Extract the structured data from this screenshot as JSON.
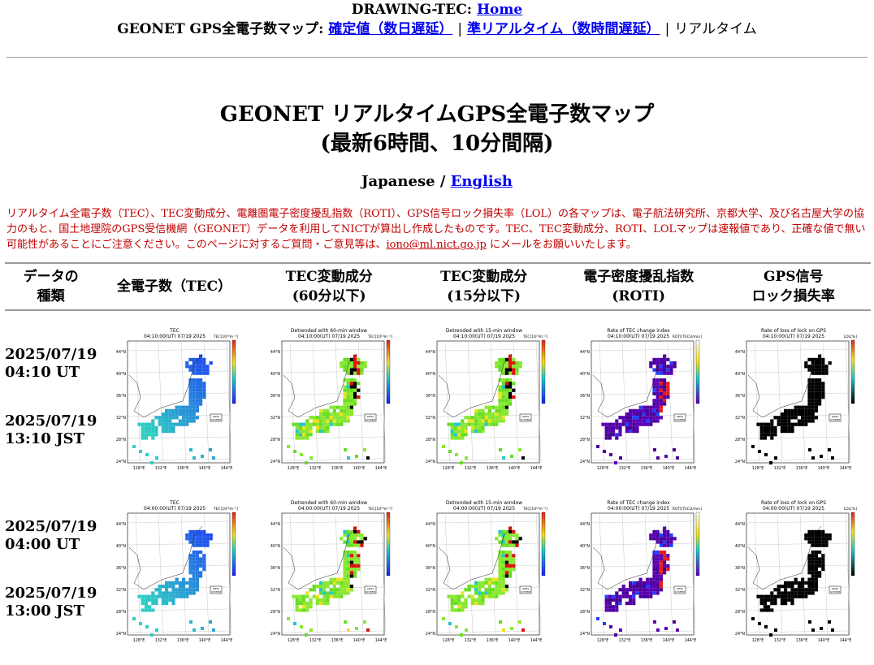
{
  "header": {
    "site_prefix": "DRAWING-TEC:",
    "home_link": "Home",
    "map_prefix": "GEONET GPS全電子数マップ:",
    "link_confirmed": "確定値（数日遅延）",
    "link_near_realtime": "準リアルタイム（数時間遅延）",
    "current": "リアルタイム"
  },
  "title": {
    "line1": "GEONET リアルタイムGPS全電子数マップ",
    "line2": "(最新6時間、10分間隔)"
  },
  "language": {
    "japanese": "Japanese /",
    "english": "English"
  },
  "notice": {
    "text": "リアルタイム全電子数（TEC）、TEC変動成分、電離圏電子密度擾乱指数（ROTI）、GPS信号ロック損失率（LOL）の各マップは、電子航法研究所、京都大学、及び名古屋大学の協力のもと、国土地理院のGPS受信機網（GEONET）データを利用してNICTが算出し作成したものです。TEC、TEC変動成分、ROTI、LOLマップは速報値であり、正確な値で無い可能性があることにご注意ください。このページに対するご質問・ご意見等は、",
    "email": "iono@ml.nict.go.jp",
    "suffix": " にメールをお願いいたします。"
  },
  "table": {
    "headers": {
      "type_line1": "データの",
      "type_line2": "種類",
      "tec": "全電子数（TEC）",
      "dtec60_line1": "TEC変動成分",
      "dtec60_line2": "(60分以下)",
      "dtec15_line1": "TEC変動成分",
      "dtec15_line2": "(15分以下)",
      "roti_line1": "電子密度擾乱指数",
      "roti_line2": "(ROTI)",
      "lol_line1": "GPS信号",
      "lol_line2": "ロック損失率"
    },
    "rows": [
      {
        "date_ut": "2025/07/19",
        "time_ut": "04:10 UT",
        "date_jst": "2025/07/19",
        "time_jst": "13:10 JST",
        "maps": {
          "tec": {
            "title": "TEC",
            "time": "04:10:00(UT) 07/19 2025",
            "unit": "TEC[10¹⁶m⁻²]"
          },
          "dtec60": {
            "title": "Detrended with 60-min window",
            "time": "04:10:00(UT) 07/19 2025",
            "unit": "TEC[10¹⁶m⁻²]"
          },
          "dtec15": {
            "title": "Detrended with 15-min window",
            "time": "04:10:00(UT) 07/19 2025",
            "unit": "TEC[10¹⁶m⁻²]"
          },
          "roti": {
            "title": "Rate of TEC change index",
            "time": "04:10:00(UT) 07/19 2025",
            "unit": "ROTI[TECU/min]"
          },
          "lol": {
            "title": "Rate of loss of lock on GPS",
            "time": "04:10:00(UT) 07/19 2025",
            "unit": "LOL[%]"
          }
        }
      },
      {
        "date_ut": "2025/07/19",
        "time_ut": "04:00 UT",
        "date_jst": "2025/07/19",
        "time_jst": "13:00 JST",
        "maps": {
          "tec": {
            "title": "TEC",
            "time": "04:00:00(UT) 07/19 2025",
            "unit": "TEC[10¹⁶m⁻²]"
          },
          "dtec60": {
            "title": "Detrended with 60-min window",
            "time": "04:00:00(UT) 07/19 2025",
            "unit": "TEC[10¹⁶m⁻²]"
          },
          "dtec15": {
            "title": "Detrended with 15-min window",
            "time": "04:00:00(UT) 07/19 2025",
            "unit": "TEC[10¹⁶m⁻²]"
          },
          "roti": {
            "title": "Rate of TEC change index",
            "time": "04:00:00(UT) 07/19 2025",
            "unit": "ROTI[TECU/min]"
          },
          "lol": {
            "title": "Rate of loss of lock on GPS",
            "time": "04:00:00(UT) 07/19 2025",
            "unit": "LOL[%]"
          }
        }
      }
    ],
    "lat_ticks": [
      "44°N",
      "40°N",
      "36°N",
      "32°N",
      "28°N",
      "24°N"
    ],
    "lon_ticks": [
      "128°E",
      "132°E",
      "136°E",
      "140°E",
      "144°E"
    ],
    "gnss_label_1": "GNSS",
    "gnss_label_2": "SYSTEM",
    "colors": {
      "link": "#0000ee",
      "notice": "#c00000",
      "rule": "#9a9a9a",
      "tec_low": "#1a1aff",
      "tec_high": "#20c8c8",
      "dtec_base": "#66dd22",
      "roti_base": "#5a00b4",
      "lol_base": "#000000"
    }
  }
}
